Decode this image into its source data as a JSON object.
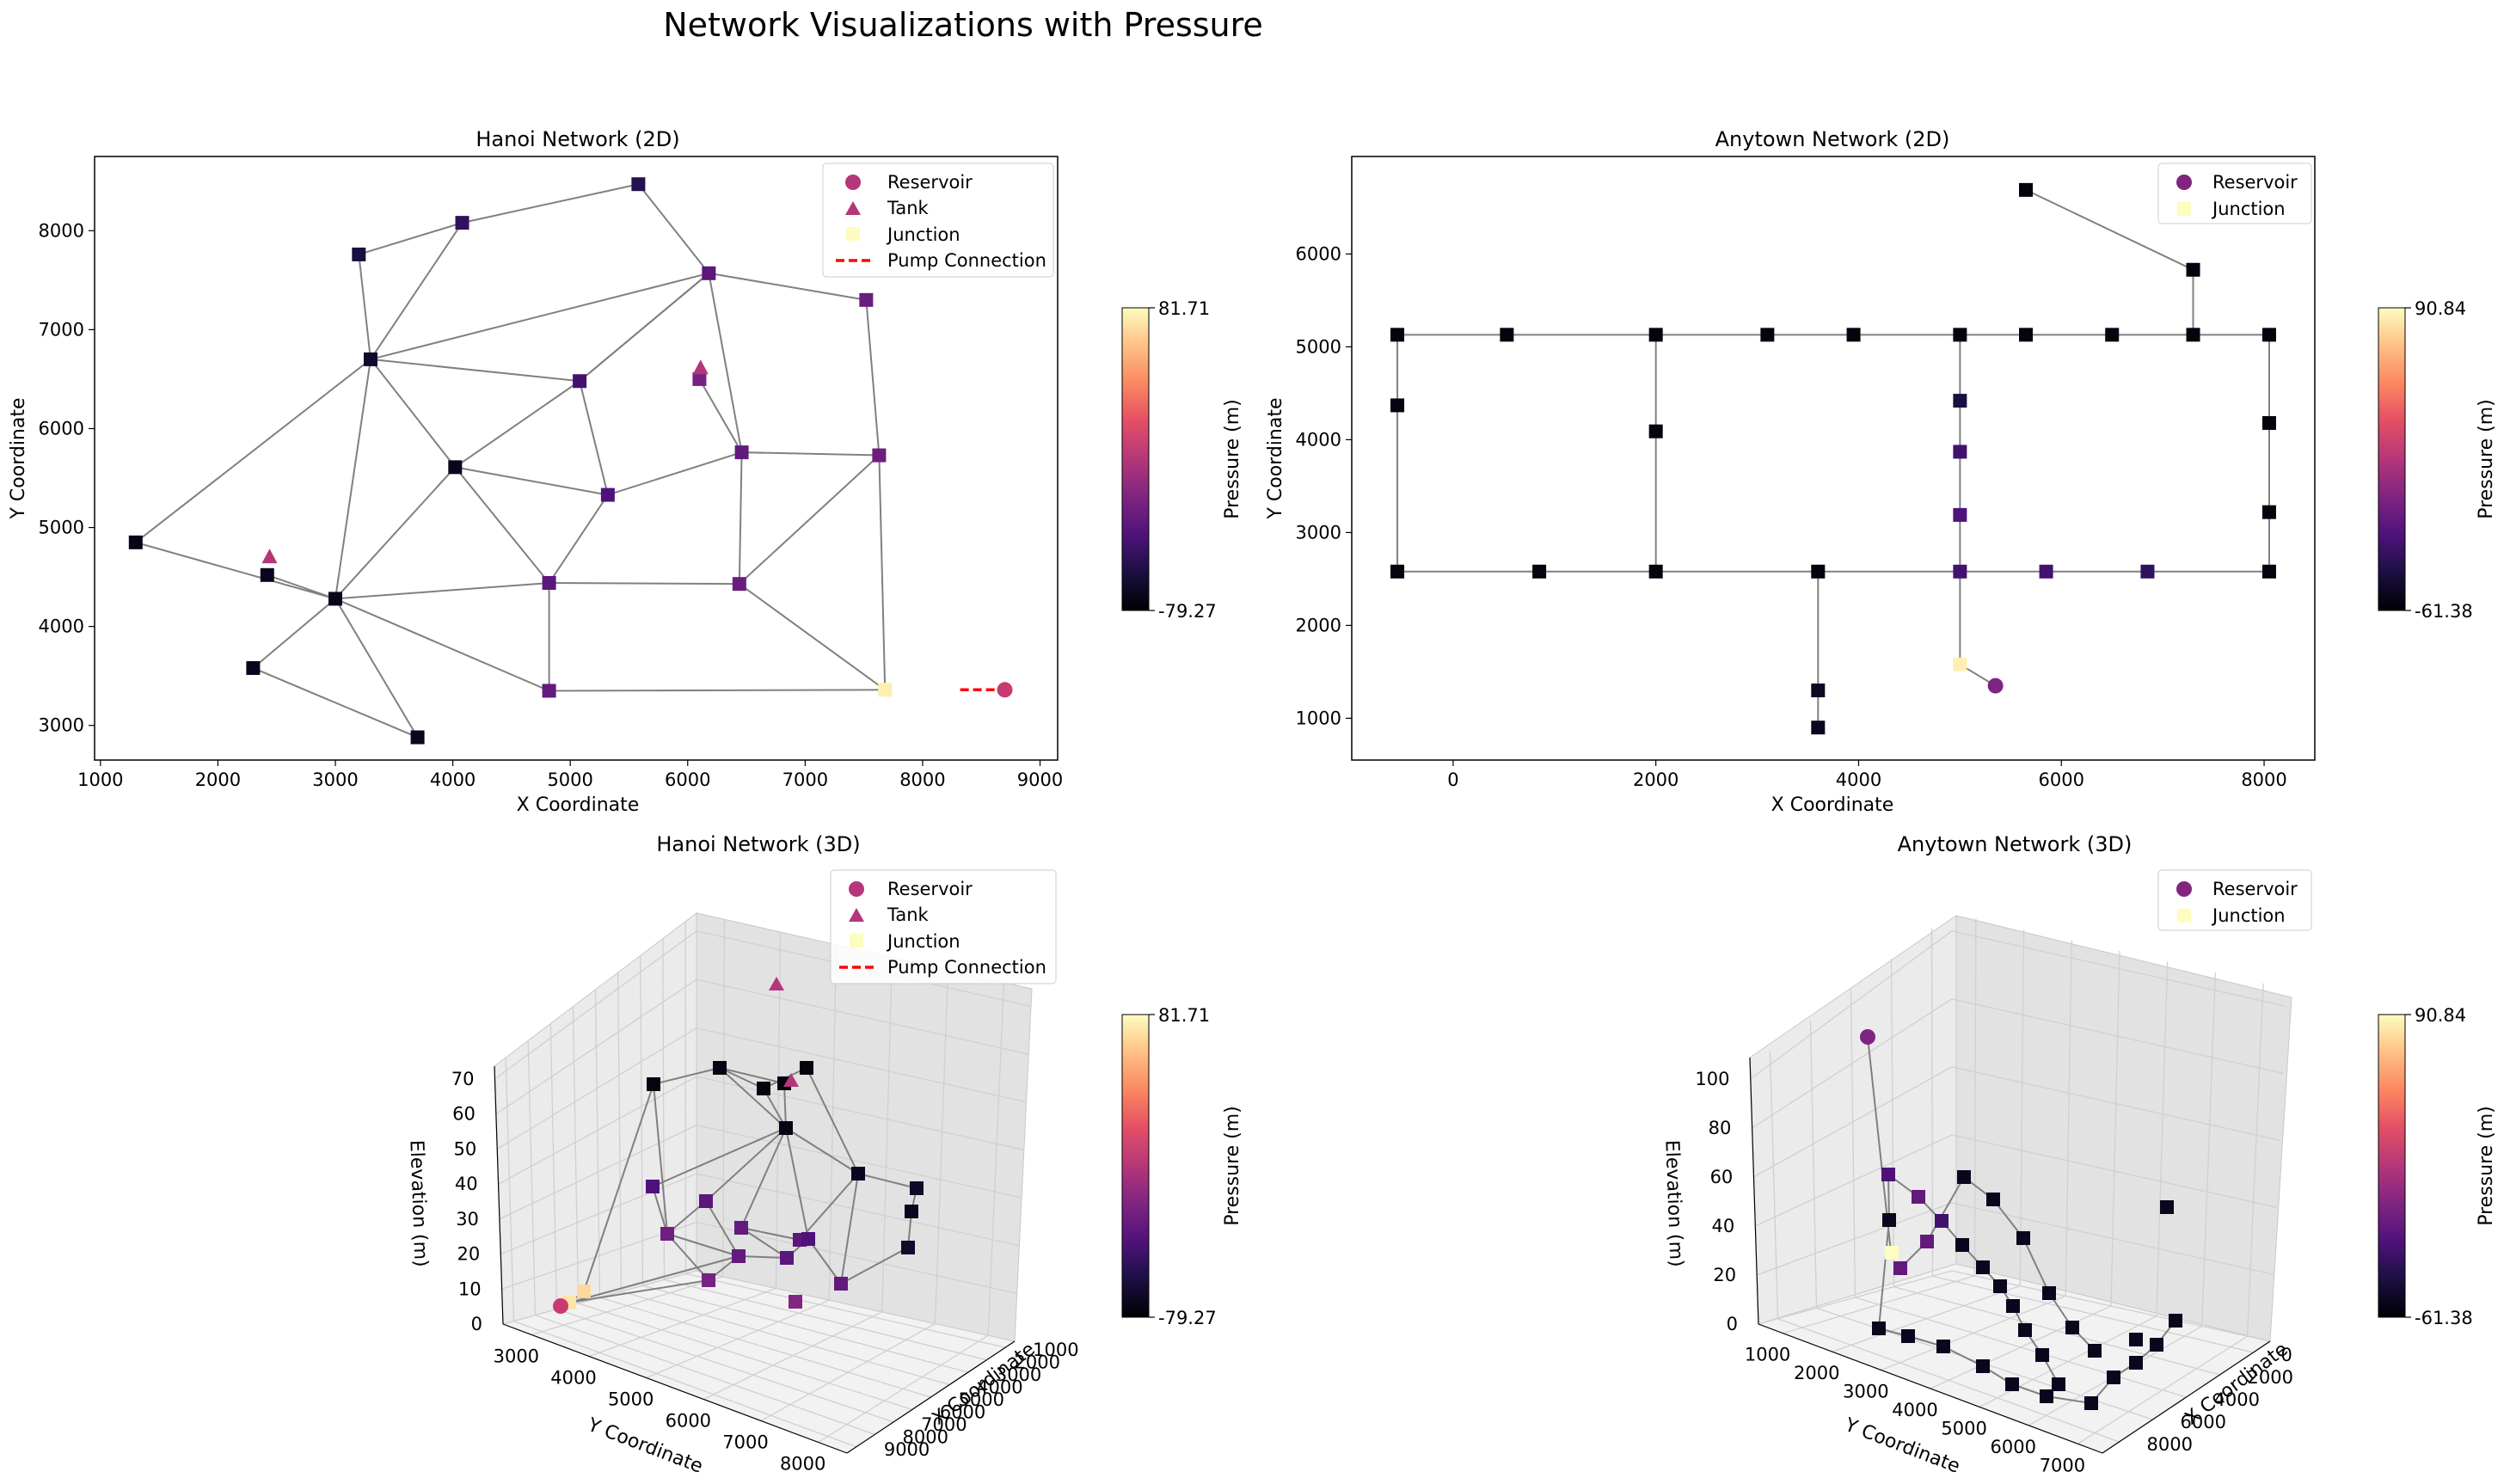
{
  "figure": {
    "suptitle": "Network Visualizations with Pressure"
  },
  "chart_data": [
    {
      "type": "network",
      "title": "Hanoi Network (2D)",
      "xlabel": "X Coordinate",
      "ylabel": "Y Coordinate",
      "xlim": [
        950,
        9150
      ],
      "ylim": [
        2650,
        8750
      ],
      "xticks": [
        1000,
        2000,
        3000,
        4000,
        5000,
        6000,
        7000,
        8000,
        9000
      ],
      "yticks": [
        3000,
        4000,
        5000,
        6000,
        7000,
        8000
      ],
      "legend": {
        "placement": "top-right",
        "items": [
          "Reservoir",
          "Tank",
          "Junction",
          "Pump Connection"
        ]
      },
      "colorbar": {
        "label": "Pressure (m)",
        "max_label": "81.71",
        "min_label": "-79.27",
        "colormap": "magma"
      },
      "junctions": [
        {
          "x": 5580,
          "y": 8470,
          "c": 0.15
        },
        {
          "x": 4080,
          "y": 8080,
          "c": 0.18
        },
        {
          "x": 3200,
          "y": 7760,
          "c": 0.12
        },
        {
          "x": 6180,
          "y": 7570,
          "c": 0.28
        },
        {
          "x": 7520,
          "y": 7300,
          "c": 0.32
        },
        {
          "x": 3300,
          "y": 6700,
          "c": 0.08
        },
        {
          "x": 5080,
          "y": 6480,
          "c": 0.22
        },
        {
          "x": 6100,
          "y": 6500,
          "c": 0.35
        },
        {
          "x": 6460,
          "y": 5760,
          "c": 0.3
        },
        {
          "x": 7630,
          "y": 5730,
          "c": 0.33
        },
        {
          "x": 4020,
          "y": 5610,
          "c": 0.05
        },
        {
          "x": 5320,
          "y": 5330,
          "c": 0.25
        },
        {
          "x": 1300,
          "y": 4850,
          "c": 0.04
        },
        {
          "x": 2420,
          "y": 4520,
          "c": 0.05
        },
        {
          "x": 4820,
          "y": 4440,
          "c": 0.28
        },
        {
          "x": 6440,
          "y": 4430,
          "c": 0.32
        },
        {
          "x": 3000,
          "y": 4280,
          "c": 0.04
        },
        {
          "x": 2300,
          "y": 3580,
          "c": 0.05
        },
        {
          "x": 4820,
          "y": 3350,
          "c": 0.3
        },
        {
          "x": 3700,
          "y": 2880,
          "c": 0.05
        },
        {
          "x": 7680,
          "y": 3360,
          "c": 0.97
        }
      ],
      "edges": [
        [
          0,
          1
        ],
        [
          1,
          2
        ],
        [
          2,
          5
        ],
        [
          1,
          5
        ],
        [
          0,
          3
        ],
        [
          3,
          4
        ],
        [
          3,
          6
        ],
        [
          5,
          3
        ],
        [
          4,
          9
        ],
        [
          5,
          6
        ],
        [
          5,
          10
        ],
        [
          5,
          12
        ],
        [
          5,
          16
        ],
        [
          6,
          10
        ],
        [
          6,
          11
        ],
        [
          6,
          3
        ],
        [
          3,
          8
        ],
        [
          7,
          8
        ],
        [
          8,
          11
        ],
        [
          8,
          9
        ],
        [
          8,
          15
        ],
        [
          9,
          15
        ],
        [
          9,
          20
        ],
        [
          10,
          11
        ],
        [
          10,
          16
        ],
        [
          10,
          14
        ],
        [
          11,
          14
        ],
        [
          12,
          16
        ],
        [
          13,
          16
        ],
        [
          14,
          15
        ],
        [
          14,
          18
        ],
        [
          15,
          20
        ],
        [
          16,
          17
        ],
        [
          16,
          19
        ],
        [
          16,
          14
        ],
        [
          16,
          18
        ],
        [
          17,
          19
        ],
        [
          18,
          20
        ]
      ],
      "tanks": [
        {
          "x": 6110,
          "y": 6610
        },
        {
          "x": 2440,
          "y": 4700
        }
      ],
      "reservoir": {
        "x": 8700,
        "y": 3360
      },
      "pump": {
        "x1": 8320,
        "x2": 8680,
        "y": 3360
      }
    },
    {
      "type": "network",
      "title": "Anytown Network (2D)",
      "xlabel": "X Coordinate",
      "ylabel": "Y Coordinate",
      "xlim": [
        -1000,
        8500
      ],
      "ylim": [
        550,
        7050
      ],
      "xticks": [
        0,
        2000,
        4000,
        6000,
        8000
      ],
      "yticks": [
        1000,
        2000,
        3000,
        4000,
        5000,
        6000
      ],
      "legend": {
        "placement": "top-right",
        "items": [
          "Reservoir",
          "Junction"
        ]
      },
      "colorbar": {
        "label": "Pressure (m)",
        "max_label": "90.84",
        "min_label": "-61.38",
        "colormap": "magma"
      },
      "junctions": [
        {
          "x": -550,
          "y": 5130,
          "c": 0.02
        },
        {
          "x": 530,
          "y": 5130,
          "c": 0.02
        },
        {
          "x": 2000,
          "y": 5130,
          "c": 0.02
        },
        {
          "x": 3100,
          "y": 5130,
          "c": 0.02
        },
        {
          "x": 3950,
          "y": 5130,
          "c": 0.02
        },
        {
          "x": 5000,
          "y": 5130,
          "c": 0.02
        },
        {
          "x": 5650,
          "y": 5130,
          "c": 0.02
        },
        {
          "x": 6500,
          "y": 5130,
          "c": 0.02
        },
        {
          "x": 7300,
          "y": 5130,
          "c": 0.02
        },
        {
          "x": 8050,
          "y": 5130,
          "c": 0.02
        },
        {
          "x": -550,
          "y": 4370,
          "c": 0.02
        },
        {
          "x": 2000,
          "y": 4090,
          "c": 0.02
        },
        {
          "x": 5000,
          "y": 4420,
          "c": 0.12
        },
        {
          "x": 5000,
          "y": 3870,
          "c": 0.22
        },
        {
          "x": 5000,
          "y": 3190,
          "c": 0.25
        },
        {
          "x": 8050,
          "y": 4180,
          "c": 0.02
        },
        {
          "x": 8050,
          "y": 3220,
          "c": 0.02
        },
        {
          "x": -550,
          "y": 2580,
          "c": 0.02
        },
        {
          "x": 850,
          "y": 2580,
          "c": 0.02
        },
        {
          "x": 2000,
          "y": 2580,
          "c": 0.02
        },
        {
          "x": 3600,
          "y": 2580,
          "c": 0.02
        },
        {
          "x": 5000,
          "y": 2580,
          "c": 0.22
        },
        {
          "x": 5850,
          "y": 2580,
          "c": 0.22
        },
        {
          "x": 6850,
          "y": 2580,
          "c": 0.18
        },
        {
          "x": 8050,
          "y": 2580,
          "c": 0.02
        },
        {
          "x": 3600,
          "y": 1300,
          "c": 0.06
        },
        {
          "x": 3600,
          "y": 900,
          "c": 0.05
        },
        {
          "x": 5650,
          "y": 6690,
          "c": 0.02
        },
        {
          "x": 7300,
          "y": 5830,
          "c": 0.02
        },
        {
          "x": 5000,
          "y": 1580,
          "c": 0.97
        }
      ],
      "edges": [
        [
          0,
          1
        ],
        [
          1,
          2
        ],
        [
          2,
          3
        ],
        [
          3,
          4
        ],
        [
          4,
          5
        ],
        [
          5,
          6
        ],
        [
          6,
          7
        ],
        [
          7,
          8
        ],
        [
          8,
          9
        ],
        [
          0,
          10
        ],
        [
          10,
          17
        ],
        [
          2,
          11
        ],
        [
          11,
          19
        ],
        [
          5,
          12
        ],
        [
          12,
          13
        ],
        [
          13,
          14
        ],
        [
          14,
          21
        ],
        [
          9,
          15
        ],
        [
          15,
          16
        ],
        [
          16,
          24
        ],
        [
          17,
          18
        ],
        [
          18,
          19
        ],
        [
          19,
          20
        ],
        [
          20,
          21
        ],
        [
          21,
          22
        ],
        [
          22,
          23
        ],
        [
          23,
          24
        ],
        [
          20,
          25
        ],
        [
          25,
          26
        ],
        [
          8,
          28
        ],
        [
          28,
          27
        ],
        [
          21,
          29
        ]
      ],
      "reservoir": {
        "x": 5350,
        "y": 1350
      }
    },
    {
      "type": "network-3d",
      "title": "Hanoi Network (3D)",
      "xlabel": "X Coordinate",
      "ylabel": "Y Coordinate",
      "zlabel": "Elevation (m)",
      "xticks": [
        1000,
        2000,
        3000,
        4000,
        5000,
        6000,
        7000,
        8000,
        9000
      ],
      "yticks": [
        3000,
        4000,
        5000,
        6000,
        7000,
        8000
      ],
      "zticks": [
        0,
        10,
        20,
        30,
        40,
        50,
        60,
        70
      ],
      "legend": {
        "placement": "top-right",
        "items": [
          "Reservoir",
          "Tank",
          "Junction",
          "Pump Connection"
        ]
      },
      "colorbar": {
        "label": "Pressure (m)",
        "max_label": "81.71",
        "min_label": "-79.27",
        "colormap": "magma"
      }
    },
    {
      "type": "network-3d",
      "title": "Anytown Network (3D)",
      "xlabel": "X Coordinate",
      "ylabel": "Y Coordinate",
      "zlabel": "Elevation (m)",
      "xticks": [
        0,
        2000,
        4000,
        6000,
        8000
      ],
      "yticks": [
        1000,
        2000,
        3000,
        4000,
        5000,
        6000,
        7000
      ],
      "zticks": [
        0,
        20,
        40,
        60,
        80,
        100
      ],
      "legend": {
        "placement": "top-right",
        "items": [
          "Reservoir",
          "Junction"
        ]
      },
      "colorbar": {
        "label": "Pressure (m)",
        "max_label": "90.84",
        "min_label": "-61.38",
        "colormap": "magma"
      }
    }
  ]
}
